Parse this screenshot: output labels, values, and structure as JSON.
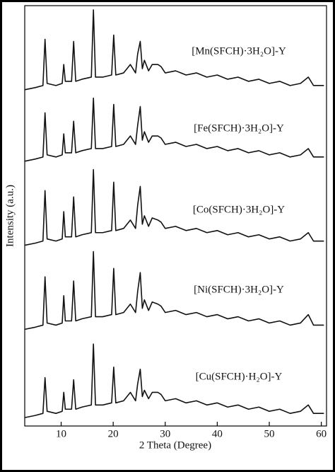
{
  "chart_data": {
    "type": "line",
    "x_label": "2 Theta (Degree)",
    "y_label": "Intensity (a.u.)",
    "x": [
      3,
      5,
      6.5,
      6.9,
      7.3,
      9,
      10.2,
      10.5,
      10.8,
      12,
      12.4,
      12.8,
      14,
      15.8,
      16.2,
      16.6,
      18,
      19.7,
      20.1,
      20.5,
      22,
      23.3,
      24.3,
      24.7,
      25.2,
      25.6,
      26,
      26.8,
      27.5,
      28.6,
      29.2,
      30,
      32,
      34,
      36,
      38,
      40,
      42,
      44,
      46,
      48,
      50,
      52,
      54,
      56,
      57.5,
      58.5,
      60.5
    ],
    "series": [
      {
        "name": "[Mn(SFCH)·3H₂O]-Y",
        "color": "#111111",
        "values": [
          80,
          80.5,
          81,
          92,
          81.5,
          81,
          81.5,
          86,
          82,
          82,
          91.5,
          82,
          82.5,
          83,
          99,
          83,
          83,
          83.5,
          93,
          83.5,
          84,
          86,
          84,
          88.5,
          91.5,
          85,
          87,
          84.5,
          86,
          86,
          85.5,
          84,
          84.5,
          83.5,
          84,
          83,
          83.5,
          82.5,
          83,
          82,
          82.5,
          81.5,
          82,
          81,
          81.5,
          83,
          81,
          81
        ]
      },
      {
        "name": "[Fe(SFCH)·3H₂O]-Y",
        "color": "#111111",
        "values": [
          63,
          63.5,
          64,
          74.5,
          64.5,
          64,
          64.5,
          69.5,
          65,
          65,
          72.5,
          65,
          65.5,
          66,
          78,
          66,
          66,
          66.5,
          76.5,
          66.5,
          67,
          69,
          67,
          71.5,
          76,
          68,
          70,
          67.5,
          69,
          69,
          68.5,
          67,
          67.5,
          66.5,
          67,
          66,
          66.5,
          65.5,
          66,
          65,
          65.5,
          64.5,
          65,
          64,
          64.5,
          66,
          64,
          64
        ]
      },
      {
        "name": "[Co(SFCH)·3H₂O]-Y",
        "color": "#111111",
        "values": [
          43,
          43.5,
          44,
          56,
          44.5,
          44,
          44.5,
          51,
          45,
          45,
          54.5,
          45,
          45.5,
          46,
          61,
          46,
          46,
          46.5,
          58,
          46.5,
          47,
          49,
          47,
          52.5,
          57,
          48,
          50,
          47.5,
          49.5,
          49,
          48.5,
          47,
          47.5,
          46.5,
          47,
          46,
          46.5,
          45.5,
          46,
          45,
          45.5,
          44.5,
          45,
          44,
          44.5,
          46,
          44,
          44
        ]
      },
      {
        "name": "[Ni(SFCH)·3H₂O]-Y",
        "color": "#111111",
        "values": [
          23,
          23.5,
          24,
          35.5,
          24.5,
          24,
          24.5,
          31,
          25,
          25,
          34.5,
          25,
          25.5,
          26,
          41.5,
          26,
          26,
          26.5,
          37.5,
          26.5,
          27,
          29,
          27,
          32,
          36.5,
          28,
          30,
          27.5,
          29.5,
          29,
          28.5,
          27,
          27.5,
          26.5,
          27,
          26,
          26.5,
          25.5,
          26,
          25,
          25.5,
          24.5,
          25,
          24,
          24.5,
          26.5,
          24,
          24
        ]
      },
      {
        "name": "[Cu(SFCH)·H₂O]-Y",
        "color": "#111111",
        "values": [
          2,
          2.5,
          3,
          11.5,
          3.5,
          3,
          3.5,
          8,
          4,
          4,
          11,
          4,
          4.5,
          5,
          19.5,
          5,
          5,
          5.5,
          14,
          5.5,
          6,
          8,
          6,
          10,
          13.5,
          7,
          8.5,
          6.5,
          8,
          8,
          7.5,
          6,
          6.5,
          5.5,
          6,
          5,
          5.5,
          4.5,
          5,
          4,
          4.5,
          3.5,
          4,
          3,
          3.5,
          5,
          3,
          3
        ]
      }
    ],
    "xlim": [
      3,
      61
    ],
    "xticks": [
      10,
      20,
      30,
      40,
      50,
      60
    ],
    "ylim": [
      0,
      100
    ]
  }
}
